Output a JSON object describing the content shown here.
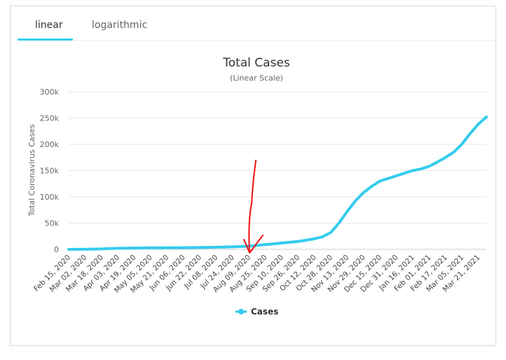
{
  "tabs": [
    {
      "label": "linear",
      "active": true
    },
    {
      "label": "logarithmic",
      "active": false
    }
  ],
  "colors": {
    "series": "#33ccee",
    "annotation": "#ee1111",
    "grid": "#e6e6e6"
  },
  "chart_data": {
    "type": "line",
    "title": "Total Cases",
    "subtitle": "(Linear Scale)",
    "ylabel": "Total Coronavirus Cases",
    "xlabel": "",
    "ylim": [
      0,
      300000
    ],
    "yticks": [
      0,
      50000,
      100000,
      150000,
      200000,
      250000,
      300000
    ],
    "ytick_labels": [
      "0",
      "50k",
      "100k",
      "150k",
      "200k",
      "250k",
      "300k"
    ],
    "xtick_labels": [
      "Feb 15, 2020",
      "Mar 02, 2020",
      "Mar 18, 2020",
      "Apr 03, 2020",
      "Apr 19, 2020",
      "May 05, 2020",
      "May 21, 2020",
      "Jun 06, 2020",
      "Jun 22, 2020",
      "Jul 08, 2020",
      "Jul 24, 2020",
      "Aug 09, 2020",
      "Aug 25, 2020",
      "Sep 10, 2020",
      "Sep 26, 2020",
      "Oct 12, 2020",
      "Oct 28, 2020",
      "Nov 13, 2020",
      "Nov 29, 2020",
      "Dec 15, 2020",
      "Dec 31, 2020",
      "Jan 16, 2021",
      "Feb 01, 2021",
      "Feb 17, 2021",
      "Mar 05, 2021",
      "Mar 21, 2021"
    ],
    "grid": true,
    "legend_position": "bottom-center",
    "series": [
      {
        "name": "Cases",
        "x": [
          "Feb 15, 2020",
          "Mar 02, 2020",
          "Mar 18, 2020",
          "Apr 03, 2020",
          "Apr 19, 2020",
          "May 05, 2020",
          "May 21, 2020",
          "Jun 06, 2020",
          "Jun 22, 2020",
          "Jul 08, 2020",
          "Jul 24, 2020",
          "Aug 09, 2020",
          "Aug 25, 2020",
          "Sep 10, 2020",
          "Sep 26, 2020",
          "Oct 12, 2020",
          "Oct 20, 2020",
          "Oct 28, 2020",
          "Nov 05, 2020",
          "Nov 13, 2020",
          "Nov 21, 2020",
          "Nov 29, 2020",
          "Dec 07, 2020",
          "Dec 15, 2020",
          "Dec 23, 2020",
          "Dec 31, 2020",
          "Jan 08, 2021",
          "Jan 16, 2021",
          "Jan 24, 2021",
          "Feb 01, 2021",
          "Feb 09, 2021",
          "Feb 17, 2021",
          "Feb 25, 2021",
          "Mar 05, 2021",
          "Mar 13, 2021",
          "Mar 21, 2021",
          "Mar 29, 2021"
        ],
        "values": [
          0,
          200,
          800,
          2000,
          2500,
          2800,
          3000,
          3200,
          3500,
          4000,
          4800,
          6000,
          9000,
          12000,
          15000,
          20000,
          24000,
          32000,
          50000,
          72000,
          92000,
          108000,
          120000,
          130000,
          135000,
          140000,
          145000,
          150000,
          153000,
          158000,
          166000,
          175000,
          185000,
          200000,
          220000,
          238000,
          252000
        ]
      }
    ]
  },
  "annotation": {
    "type": "hand-drawn-arrow",
    "points_to": "Aug 09, 2020"
  }
}
